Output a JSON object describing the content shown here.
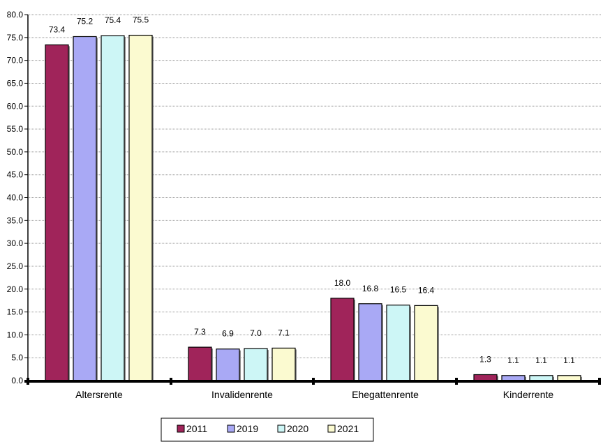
{
  "chart_data": {
    "type": "bar",
    "categories": [
      "Altersrente",
      "Invalidenrente",
      "Ehegattenrente",
      "Kinderrente"
    ],
    "series": [
      {
        "name": "2011",
        "values": [
          73.4,
          7.3,
          18.0,
          1.3
        ],
        "color": "#a0245a",
        "label_color": "#000000"
      },
      {
        "name": "2019",
        "values": [
          75.2,
          6.9,
          16.8,
          1.1
        ],
        "color": "#a9a9f5",
        "label_color": "#000000"
      },
      {
        "name": "2020",
        "values": [
          75.4,
          7.0,
          16.5,
          1.1
        ],
        "color": "#cdf6f6",
        "label_color": "#000000"
      },
      {
        "name": "2021",
        "values": [
          75.5,
          7.1,
          16.4,
          1.1
        ],
        "color": "#fbfad0",
        "label_color": "#000000"
      }
    ],
    "ylim": [
      0,
      80
    ],
    "ytick_step": 5,
    "ytick_labels": [
      "0.0",
      "5.0",
      "10.0",
      "15.0",
      "20.0",
      "25.0",
      "30.0",
      "35.0",
      "40.0",
      "45.0",
      "50.0",
      "55.0",
      "60.0",
      "65.0",
      "70.0",
      "75.0",
      "80.0"
    ],
    "data_labels": [
      [
        "73.4",
        "75.2",
        "75.4",
        "75.5"
      ],
      [
        "7.3",
        "6.9",
        "7.0",
        "7.1"
      ],
      [
        "18.0",
        "16.8",
        "16.5",
        "16.4"
      ],
      [
        "1.3",
        "1.1",
        "1.1",
        "1.1"
      ]
    ],
    "grid": true,
    "legend_position": "bottom",
    "title": "",
    "xlabel": "",
    "ylabel": ""
  }
}
